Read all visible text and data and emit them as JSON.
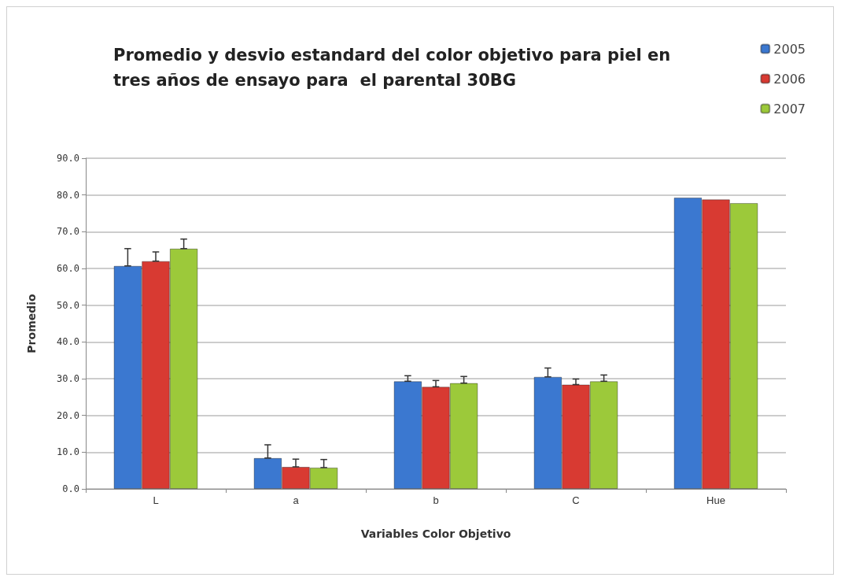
{
  "chart_data": {
    "type": "bar",
    "title": "Promedio y desvio estandard del color objetivo para piel en tres años de ensayo para  el parental 30BG",
    "xlabel": "Variables Color Objetivo",
    "ylabel": "Promedio",
    "categories": [
      "L",
      "a",
      "b",
      "C",
      "Hue"
    ],
    "series": [
      {
        "name": "2005",
        "color": "#3b78d0",
        "values": [
          60.7,
          8.4,
          29.3,
          30.5,
          79.3
        ],
        "errors": [
          [
            60.7,
            65.4
          ],
          [
            8.4,
            12.0
          ],
          [
            29.3,
            30.8
          ],
          [
            30.5,
            32.9
          ],
          null
        ]
      },
      {
        "name": "2006",
        "color": "#d83a32",
        "values": [
          62.0,
          6.0,
          27.8,
          28.4,
          78.8
        ],
        "errors": [
          [
            62.0,
            64.5
          ],
          [
            6.0,
            8.1
          ],
          [
            27.8,
            29.5
          ],
          [
            28.4,
            29.9
          ],
          null
        ]
      },
      {
        "name": "2007",
        "color": "#9cc93a",
        "values": [
          65.4,
          5.8,
          28.8,
          29.3,
          77.8
        ],
        "errors": [
          [
            65.4,
            68.0
          ],
          [
            5.8,
            8.0
          ],
          [
            28.8,
            30.6
          ],
          [
            29.3,
            31.0
          ],
          null
        ]
      }
    ],
    "ylim": [
      0,
      90
    ],
    "yticks": [
      {
        "value": 0,
        "label": "0.0"
      },
      {
        "value": 10,
        "label": "10.0"
      },
      {
        "value": 20,
        "label": "20.0"
      },
      {
        "value": 30,
        "label": "30.0"
      },
      {
        "value": 40,
        "label": "40.0"
      },
      {
        "value": 50,
        "label": "50.0"
      },
      {
        "value": 60,
        "label": "60.0"
      },
      {
        "value": 70,
        "label": "70.0"
      },
      {
        "value": 80,
        "label": "80.0"
      },
      {
        "value": 90,
        "label": "90.0"
      }
    ],
    "grid": "y",
    "legend": "top right"
  }
}
